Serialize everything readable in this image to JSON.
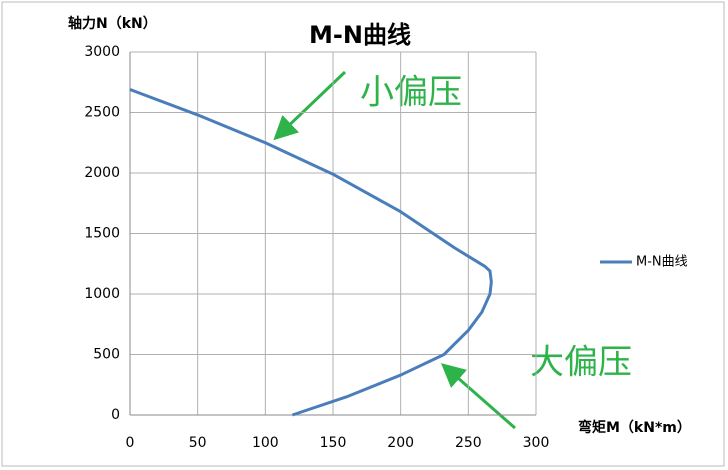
{
  "chart_data": {
    "type": "line",
    "title": "M-N曲线",
    "x_label": "弯矩M（kN*m）",
    "y_label": "轴力N（kN）",
    "annotations": [
      "小偏压",
      "大偏压"
    ],
    "x": [
      0,
      50,
      100,
      150,
      200,
      240,
      262,
      266,
      267,
      266,
      260,
      250,
      232,
      200,
      160,
      120
    ],
    "series": [
      {
        "name": "M-N曲线",
        "color": "#4a7ebb",
        "values": [
          2690,
          2480,
          2250,
          1990,
          1680,
          1380,
          1230,
          1190,
          1100,
          1000,
          850,
          700,
          500,
          330,
          150,
          0
        ]
      }
    ],
    "xlim": [
      0,
      300
    ],
    "xticks": [
      0,
      50,
      100,
      150,
      200,
      250,
      300
    ],
    "ylim": [
      0,
      3000
    ],
    "yticks": [
      0,
      500,
      1000,
      1500,
      2000,
      2500,
      3000
    ],
    "grid": true,
    "legend": "right"
  }
}
